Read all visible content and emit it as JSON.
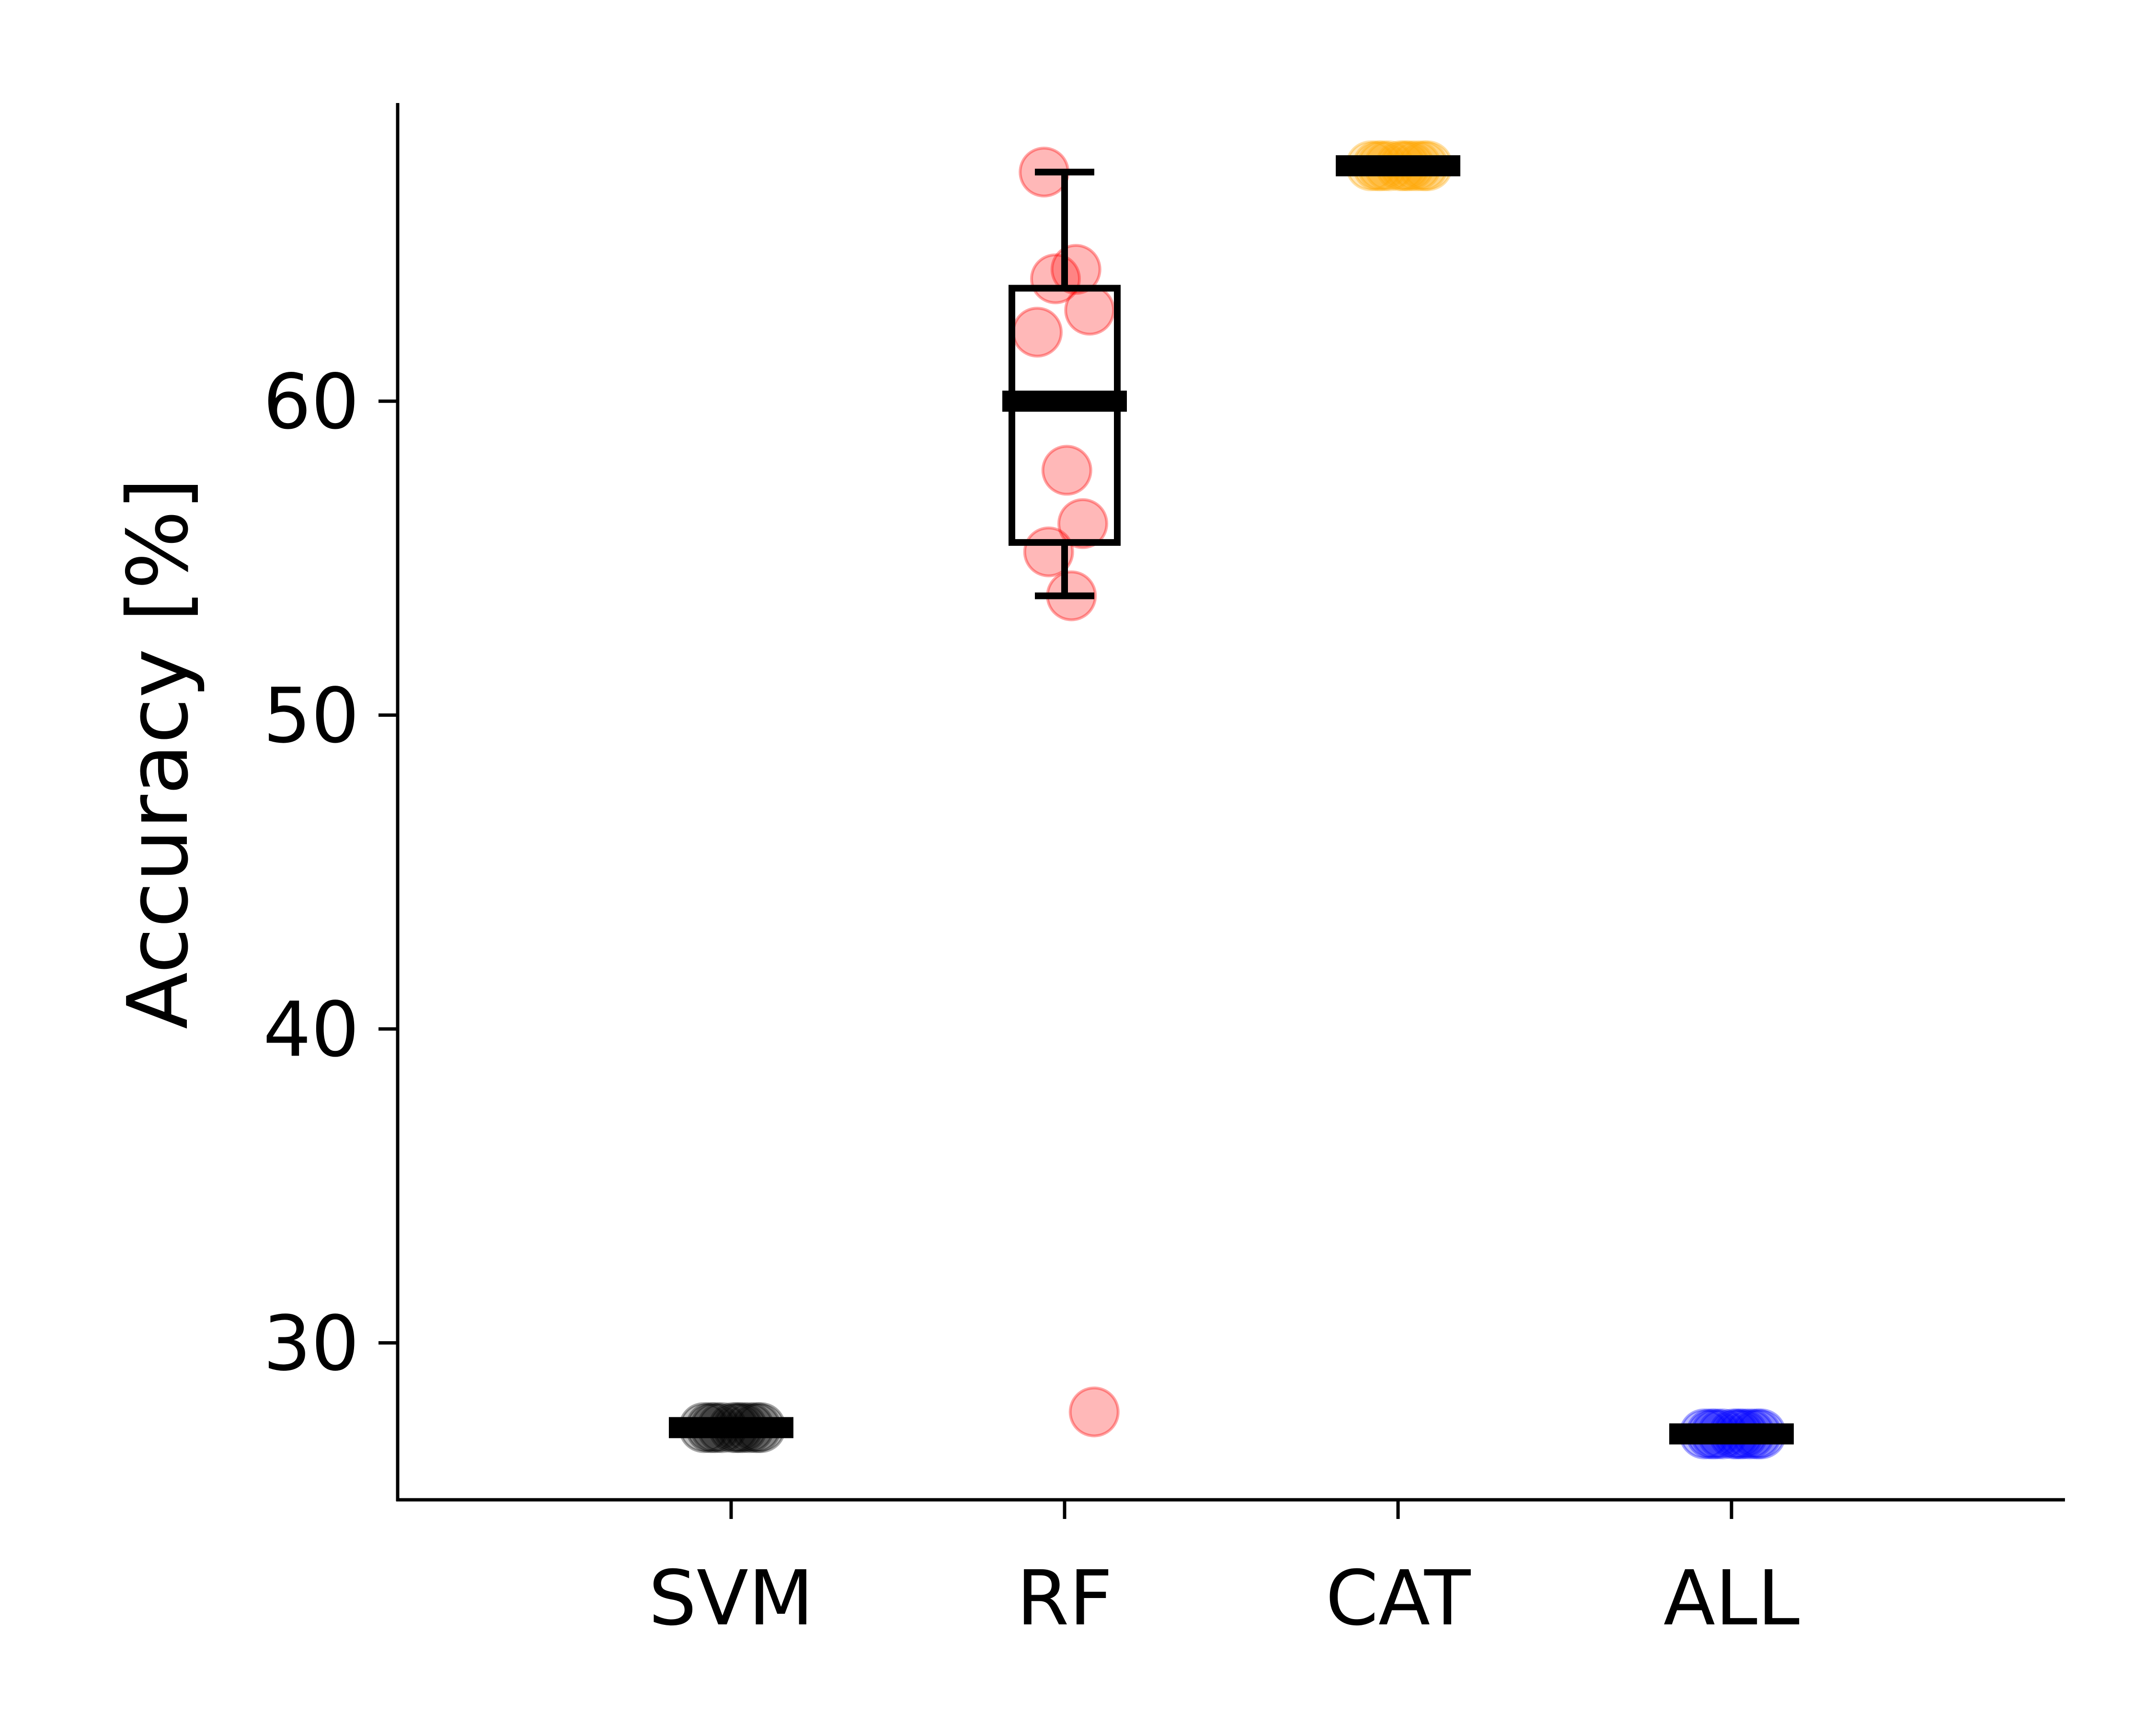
{
  "chart_data": {
    "type": "box",
    "title": "",
    "xlabel": "",
    "ylabel": "Accuracy [%]",
    "categories": [
      "SVM",
      "RF",
      "CAT",
      "ALL"
    ],
    "ylim": [
      25,
      69.5
    ],
    "yticks": [
      30,
      40,
      50,
      60
    ],
    "grid": false,
    "legend": "none",
    "groups": [
      {
        "category": "SVM",
        "color": "#000000",
        "points": [
          27.3,
          27.3,
          27.3,
          27.3,
          27.3,
          27.3,
          27.3,
          27.3,
          27.3,
          27.3
        ],
        "box": {
          "median": 27.3,
          "q1": 27.3,
          "q3": 27.3,
          "whisker_low": 27.3,
          "whisker_high": 27.3
        }
      },
      {
        "category": "RF",
        "color": "#ff0000",
        "points": [
          67.3,
          64.2,
          63.9,
          62.9,
          62.2,
          57.8,
          56.1,
          55.2,
          53.8,
          27.8
        ],
        "box": {
          "median": 60.0,
          "q1": 55.5,
          "q3": 63.6,
          "whisker_low": 53.8,
          "whisker_high": 67.3
        }
      },
      {
        "category": "CAT",
        "color": "#ffa500",
        "points": [
          67.5,
          67.5,
          67.5,
          67.5,
          67.5,
          67.5,
          67.5,
          67.5,
          67.5,
          67.5
        ],
        "box": {
          "median": 67.5,
          "q1": 67.5,
          "q3": 67.5,
          "whisker_low": 67.5,
          "whisker_high": 67.5
        }
      },
      {
        "category": "ALL",
        "color": "#0000ff",
        "points": [
          27.1,
          27.1,
          27.1,
          27.1,
          27.1,
          27.1,
          27.1,
          27.1,
          27.1,
          27.1
        ],
        "box": {
          "median": 27.1,
          "q1": 27.1,
          "q3": 27.1,
          "whisker_low": 27.1,
          "whisker_high": 27.1
        }
      }
    ]
  }
}
